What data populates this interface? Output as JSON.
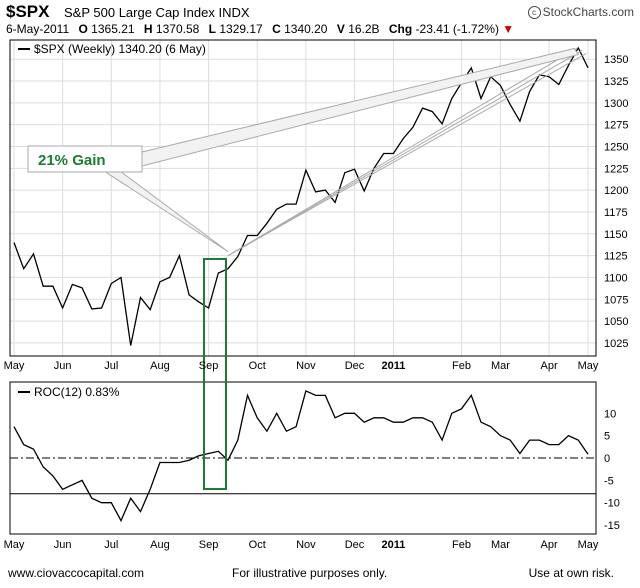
{
  "header": {
    "symbol": "$SPX",
    "name": "S&P 500 Large Cap Index",
    "exchange": "INDX",
    "brand": "StockCharts.com",
    "date": "6-May-2011",
    "open_label": "O",
    "open": "1365.21",
    "high_label": "H",
    "high": "1370.58",
    "low_label": "L",
    "low": "1329.17",
    "close_label": "C",
    "close": "1340.20",
    "volume_label": "V",
    "volume": "16.2B",
    "chg_label": "Chg",
    "chg": "-23.41 (-1.72%)",
    "down_arrow": "▼"
  },
  "colors": {
    "price_line": "#000000",
    "annotation_green": "#1e7b34",
    "callout_gray": "#aaaaaa",
    "grid": "#dddddd",
    "down": "#cc0000"
  },
  "annotation": {
    "label": "21% Gain",
    "trendline_start": 1125,
    "trendline_end_value": 1360
  },
  "chart_data": [
    {
      "type": "line",
      "legend": "$SPX (Weekly) 1340.20 (6 May)",
      "ylim": [
        1010,
        1372
      ],
      "yticks": [
        1025,
        1050,
        1075,
        1100,
        1125,
        1150,
        1175,
        1200,
        1225,
        1250,
        1275,
        1300,
        1325,
        1350
      ],
      "x_labels": [
        "May",
        "Jun",
        "Jul",
        "Aug",
        "Sep",
        "Oct",
        "Nov",
        "Dec",
        "2011",
        "Feb",
        "Mar",
        "Apr",
        "May"
      ],
      "x_label_week": [
        0,
        5,
        10,
        15,
        20,
        25,
        30,
        35,
        39,
        46,
        50,
        55,
        59
      ],
      "grid": true,
      "values": [
        1140,
        1110,
        1127,
        1090,
        1090,
        1065,
        1092,
        1088,
        1064,
        1065,
        1093,
        1100,
        1022,
        1077,
        1063,
        1095,
        1100,
        1125,
        1080,
        1072,
        1065,
        1105,
        1110,
        1124,
        1148,
        1148,
        1162,
        1178,
        1184,
        1184,
        1223,
        1198,
        1200,
        1186,
        1220,
        1224,
        1199,
        1225,
        1242,
        1242,
        1259,
        1272,
        1294,
        1290,
        1276,
        1305,
        1323,
        1340,
        1305,
        1330,
        1320,
        1298,
        1279,
        1313,
        1332,
        1330,
        1321,
        1343,
        1363,
        1340
      ]
    },
    {
      "type": "line",
      "legend": "ROC(12) 0.83%",
      "ylim": [
        -17,
        17
      ],
      "yticks": [
        -15,
        -10,
        -5,
        0,
        5,
        10
      ],
      "reference_line": -8,
      "x_labels": [
        "May",
        "Jun",
        "Jul",
        "Aug",
        "Sep",
        "Oct",
        "Nov",
        "Dec",
        "2011",
        "Feb",
        "Mar",
        "Apr",
        "May"
      ],
      "x_label_week": [
        0,
        5,
        10,
        15,
        20,
        25,
        30,
        35,
        39,
        46,
        50,
        55,
        59
      ],
      "grid": false,
      "values": [
        7,
        3,
        2,
        -2,
        -4,
        -7,
        -6,
        -5,
        -9,
        -10,
        -10,
        -14,
        -9,
        -12,
        -7,
        -1,
        -1,
        -1,
        -0.5,
        0.5,
        1,
        1.5,
        -0.5,
        4,
        14,
        9,
        6,
        10,
        6,
        7,
        15,
        14,
        14,
        9,
        10,
        10,
        8,
        9,
        9,
        8,
        8,
        9,
        9,
        8,
        4,
        10,
        11,
        14,
        8,
        7,
        5,
        4,
        1,
        4,
        4,
        3,
        3,
        5,
        4,
        0.83
      ]
    }
  ],
  "footer": {
    "site": "www.ciovaccocapital.com",
    "note": "For illustrative purposes only.",
    "risk": "Use at own risk."
  }
}
